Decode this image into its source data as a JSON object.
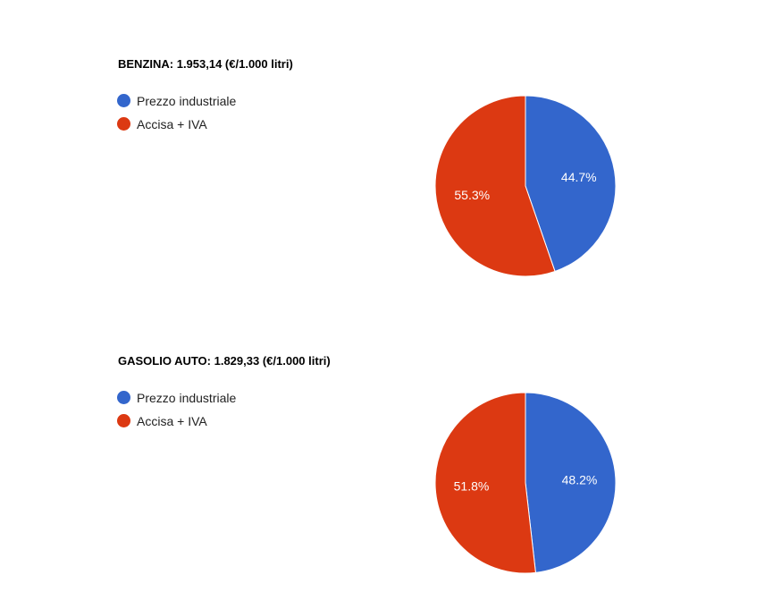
{
  "chart_data": [
    {
      "type": "pie",
      "title": "BENZINA: 1.953,14 (€/1.000 litri)",
      "legend_position": "left",
      "slices": [
        {
          "label": "Prezzo industriale",
          "value": 44.7,
          "color": "#3366cc",
          "display": "44.7%"
        },
        {
          "label": "Accisa + IVA",
          "value": 55.3,
          "color": "#dc3912",
          "display": "55.3%"
        }
      ]
    },
    {
      "type": "pie",
      "title": "GASOLIO AUTO: 1.829,33 (€/1.000 litri)",
      "legend_position": "left",
      "slices": [
        {
          "label": "Prezzo industriale",
          "value": 48.2,
          "color": "#3366cc",
          "display": "48.2%"
        },
        {
          "label": "Accisa + IVA",
          "value": 51.8,
          "color": "#dc3912",
          "display": "51.8%"
        }
      ]
    }
  ]
}
